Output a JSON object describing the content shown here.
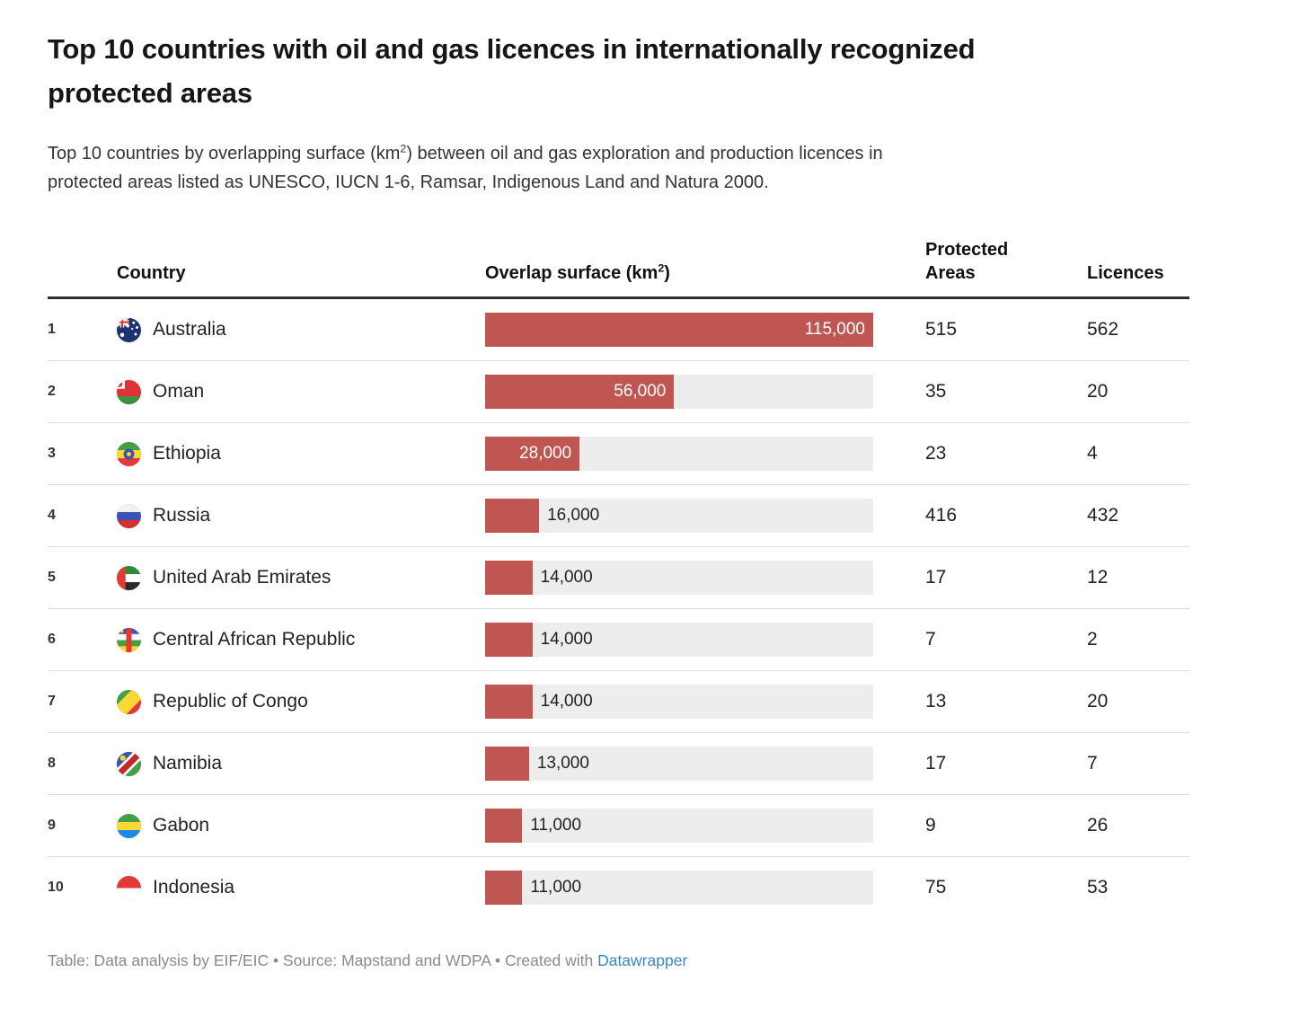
{
  "title": {
    "line1": "Top 10 countries with oil and gas licences in internationally recognized",
    "line2": "protected areas"
  },
  "description": {
    "line1_pre": "Top 10 countries by overlapping surface (km",
    "sup": "2",
    "line1_post": ") between oil and gas exploration and production licences in",
    "line2": "protected areas listed as UNESCO, IUCN 1-6, Ramsar, Indigenous Land and Natura 2000."
  },
  "table": {
    "columns": {
      "country": "Country",
      "overlap_pre": "Overlap surface (km",
      "overlap_sup": "2",
      "overlap_post": ")",
      "protected_line1": "Protected",
      "protected_line2": "Areas",
      "licences": "Licences"
    },
    "max_value": 115000,
    "rows": [
      {
        "rank": "1",
        "country": "Australia",
        "flag": "australia",
        "overlap_km2": 115000,
        "overlap_label": "115,000",
        "protected_areas": "515",
        "licences": "562"
      },
      {
        "rank": "2",
        "country": "Oman",
        "flag": "oman",
        "overlap_km2": 56000,
        "overlap_label": "56,000",
        "protected_areas": "35",
        "licences": "20"
      },
      {
        "rank": "3",
        "country": "Ethiopia",
        "flag": "ethiopia",
        "overlap_km2": 28000,
        "overlap_label": "28,000",
        "protected_areas": "23",
        "licences": "4"
      },
      {
        "rank": "4",
        "country": "Russia",
        "flag": "russia",
        "overlap_km2": 16000,
        "overlap_label": "16,000",
        "protected_areas": "416",
        "licences": "432"
      },
      {
        "rank": "5",
        "country": "United Arab Emirates",
        "flag": "uae",
        "overlap_km2": 14000,
        "overlap_label": "14,000",
        "protected_areas": "17",
        "licences": "12"
      },
      {
        "rank": "6",
        "country": "Central African Republic",
        "flag": "car",
        "overlap_km2": 14000,
        "overlap_label": "14,000",
        "protected_areas": "7",
        "licences": "2"
      },
      {
        "rank": "7",
        "country": "Republic of Congo",
        "flag": "congo",
        "overlap_km2": 14000,
        "overlap_label": "14,000",
        "protected_areas": "13",
        "licences": "20"
      },
      {
        "rank": "8",
        "country": "Namibia",
        "flag": "namibia",
        "overlap_km2": 13000,
        "overlap_label": "13,000",
        "protected_areas": "17",
        "licences": "7"
      },
      {
        "rank": "9",
        "country": "Gabon",
        "flag": "gabon",
        "overlap_km2": 11000,
        "overlap_label": "11,000",
        "protected_areas": "9",
        "licences": "26"
      },
      {
        "rank": "10",
        "country": "Indonesia",
        "flag": "indonesia",
        "overlap_km2": 11000,
        "overlap_label": "11,000",
        "protected_areas": "75",
        "licences": "53"
      }
    ]
  },
  "chart_data": {
    "type": "table",
    "title": "Top 10 countries with oil and gas licences in internationally recognized protected areas",
    "subtitle": "Top 10 countries by overlapping surface (km2) between oil and gas exploration and production licences in protected areas listed as UNESCO, IUCN 1-6, Ramsar, Indigenous Land and Natura 2000.",
    "categories": [
      "Australia",
      "Oman",
      "Ethiopia",
      "Russia",
      "United Arab Emirates",
      "Central African Republic",
      "Republic of Congo",
      "Namibia",
      "Gabon",
      "Indonesia"
    ],
    "series": [
      {
        "name": "Overlap surface (km2)",
        "values": [
          115000,
          56000,
          28000,
          16000,
          14000,
          14000,
          14000,
          13000,
          11000,
          11000
        ]
      },
      {
        "name": "Protected Areas",
        "values": [
          515,
          35,
          23,
          416,
          17,
          7,
          13,
          17,
          9,
          75
        ]
      },
      {
        "name": "Licences",
        "values": [
          562,
          20,
          4,
          432,
          12,
          2,
          20,
          7,
          26,
          53
        ]
      }
    ],
    "bar_scale_max": 115000,
    "bar_style": "embedded horizontal bars in Overlap surface column, labels inside bar when wide, outside when narrow"
  },
  "flags": {
    "australia": {
      "type": "australia",
      "colors": [
        "#1e3272",
        "#ffffff",
        "#e53935"
      ]
    },
    "oman": {
      "type": "oman",
      "colors": [
        "#dd3333",
        "#ffffff",
        "#3d9141"
      ]
    },
    "ethiopia": {
      "type": "ethiopia",
      "colors": [
        "#43a047",
        "#fdd835",
        "#e53935",
        "#3f51b5"
      ]
    },
    "russia": {
      "type": "hstripes",
      "colors": [
        "#f2f2f2",
        "#3f51b5",
        "#d32f2f"
      ]
    },
    "uae": {
      "type": "uae",
      "colors": [
        "#e03c31",
        "#2e8b3a",
        "#ffffff",
        "#2b2b2b"
      ]
    },
    "car": {
      "type": "car",
      "colors": [
        "#3f51b5",
        "#ffffff",
        "#43a047",
        "#fdd835",
        "#e53935"
      ]
    },
    "congo": {
      "type": "congo",
      "colors": [
        "#43a047",
        "#fdd835",
        "#e53935"
      ]
    },
    "namibia": {
      "type": "namibia",
      "colors": [
        "#3f51b5",
        "#ffffff",
        "#c62828",
        "#43a047",
        "#fdd835"
      ]
    },
    "gabon": {
      "type": "hstripes",
      "colors": [
        "#43a047",
        "#fdd835",
        "#1e88e5"
      ]
    },
    "indonesia": {
      "type": "bicolor",
      "colors": [
        "#e53935",
        "#ffffff"
      ]
    }
  },
  "footer": {
    "prefix": "Table: Data analysis by EIF/EIC • Source: Mapstand and WDPA • Created with ",
    "link": "Datawrapper"
  },
  "colors": {
    "bar": "#c05651",
    "bar_track": "#ededed",
    "header_rule": "#2e2e2e",
    "row_separator": "#dcdcdc",
    "footer_text": "#8a8a8a",
    "link": "#3a87c8"
  }
}
